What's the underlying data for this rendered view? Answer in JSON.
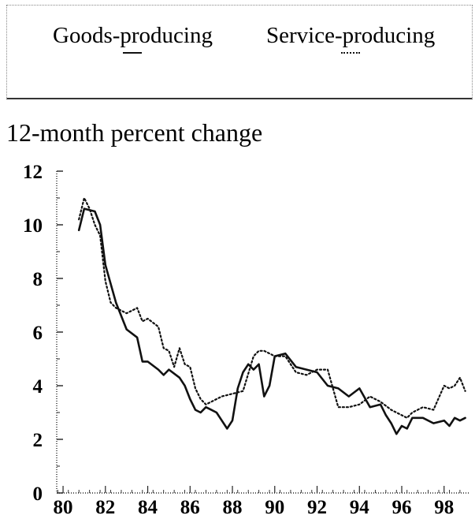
{
  "legend": {
    "goods_label": "Goods-producing",
    "services_label": "Service-producing"
  },
  "colors": {
    "line": "#111111",
    "axis": "#222222"
  },
  "chart_data": {
    "type": "line",
    "title": "",
    "ylabel": "12-month percent change",
    "xlabel": "",
    "xlim": [
      79.7,
      99.2
    ],
    "ylim": [
      0,
      12
    ],
    "x_ticks": [
      "80",
      "82",
      "84",
      "86",
      "88",
      "90",
      "92",
      "94",
      "96",
      "98"
    ],
    "y_ticks": [
      "0",
      "2",
      "4",
      "6",
      "8",
      "10",
      "12"
    ],
    "grid": false,
    "legend_position": "top",
    "series": [
      {
        "name": "Goods-producing",
        "style": "solid",
        "x": [
          80.75,
          81.0,
          81.5,
          81.75,
          82.0,
          82.5,
          83.0,
          83.5,
          83.75,
          84.0,
          84.5,
          84.75,
          85.0,
          85.5,
          85.75,
          86.0,
          86.25,
          86.5,
          86.75,
          87.0,
          87.25,
          87.5,
          87.75,
          88.0,
          88.25,
          88.5,
          88.75,
          89.0,
          89.25,
          89.5,
          89.75,
          90.0,
          90.5,
          91.0,
          91.5,
          92.0,
          92.5,
          93.0,
          93.5,
          94.0,
          94.5,
          95.0,
          95.25,
          95.5,
          95.75,
          96.0,
          96.25,
          96.5,
          97.0,
          97.5,
          98.0,
          98.25,
          98.5,
          98.75,
          99.0
        ],
        "y": [
          9.8,
          10.6,
          10.5,
          10.0,
          8.5,
          7.1,
          6.1,
          5.8,
          4.9,
          4.9,
          4.6,
          4.4,
          4.6,
          4.3,
          4.0,
          3.5,
          3.1,
          3.0,
          3.2,
          3.1,
          3.0,
          2.7,
          2.4,
          2.7,
          3.9,
          4.5,
          4.8,
          4.6,
          4.8,
          3.6,
          4.0,
          5.1,
          5.2,
          4.7,
          4.6,
          4.5,
          4.0,
          3.9,
          3.6,
          3.9,
          3.2,
          3.3,
          2.9,
          2.6,
          2.2,
          2.5,
          2.4,
          2.8,
          2.8,
          2.6,
          2.7,
          2.5,
          2.8,
          2.7,
          2.8
        ]
      },
      {
        "name": "Service-producing",
        "style": "dotted",
        "x": [
          80.75,
          81.0,
          81.25,
          81.5,
          81.75,
          82.0,
          82.25,
          82.5,
          83.0,
          83.5,
          83.75,
          84.0,
          84.5,
          84.75,
          85.0,
          85.25,
          85.5,
          85.75,
          86.0,
          86.25,
          86.5,
          86.75,
          87.0,
          87.25,
          87.5,
          88.0,
          88.5,
          89.0,
          89.25,
          89.5,
          89.75,
          90.0,
          90.5,
          91.0,
          91.5,
          92.0,
          92.5,
          93.0,
          93.5,
          94.0,
          94.5,
          95.0,
          95.5,
          96.0,
          96.25,
          96.5,
          97.0,
          97.5,
          98.0,
          98.25,
          98.5,
          98.75,
          99.0
        ],
        "y": [
          10.2,
          11.0,
          10.6,
          10.0,
          9.6,
          7.9,
          7.1,
          6.9,
          6.7,
          6.9,
          6.4,
          6.5,
          6.2,
          5.4,
          5.3,
          4.7,
          5.4,
          4.8,
          4.7,
          3.9,
          3.5,
          3.3,
          3.4,
          3.5,
          3.6,
          3.7,
          3.8,
          5.1,
          5.3,
          5.3,
          5.2,
          5.1,
          5.1,
          4.5,
          4.4,
          4.6,
          4.6,
          3.2,
          3.2,
          3.3,
          3.6,
          3.4,
          3.1,
          2.9,
          2.8,
          3.0,
          3.2,
          3.1,
          4.0,
          3.9,
          4.0,
          4.3,
          3.8
        ]
      }
    ]
  }
}
